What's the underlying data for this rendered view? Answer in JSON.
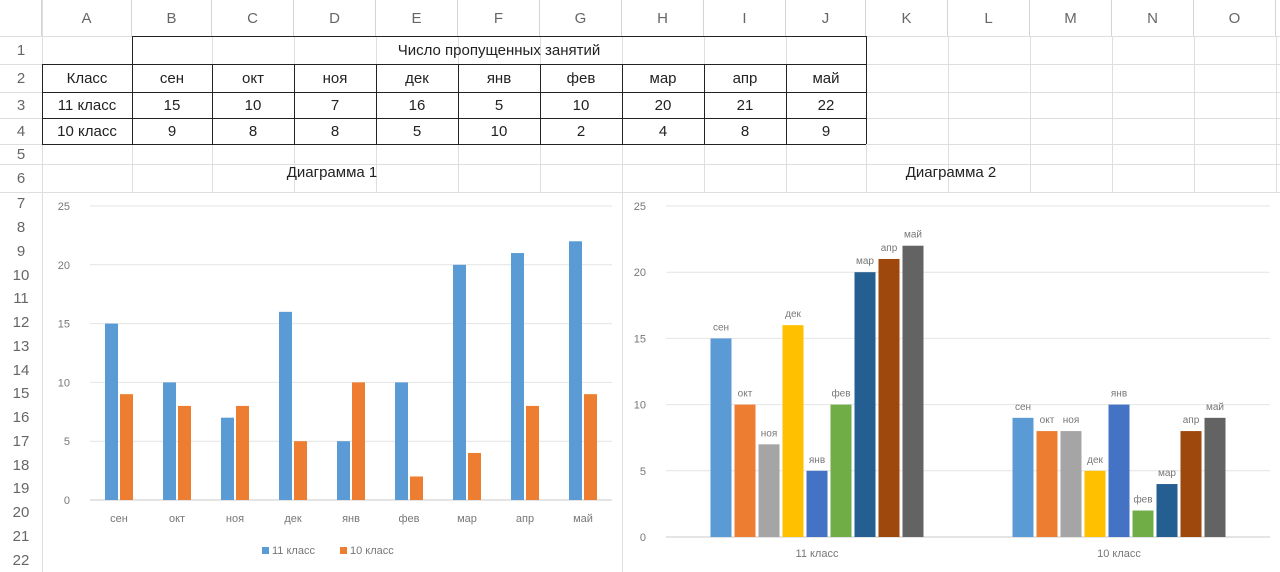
{
  "columns": [
    "A",
    "B",
    "C",
    "D",
    "E",
    "F",
    "G",
    "H",
    "I",
    "J",
    "K",
    "L",
    "M",
    "N",
    "O"
  ],
  "rows": [
    "1",
    "2",
    "3",
    "4",
    "5",
    "6",
    "7",
    "8",
    "9",
    "10",
    "11",
    "12",
    "13",
    "14",
    "15",
    "16",
    "17",
    "18",
    "19",
    "20",
    "21",
    "22"
  ],
  "table": {
    "header_merged": "Число пропущенных занятий",
    "class_header": "Класс",
    "months": [
      "сен",
      "окт",
      "ноя",
      "дек",
      "янв",
      "фев",
      "мар",
      "апр",
      "май"
    ],
    "rows": [
      {
        "label": "11 класс",
        "values": [
          "15",
          "10",
          "7",
          "16",
          "5",
          "10",
          "20",
          "21",
          "22"
        ]
      },
      {
        "label": "10 класс",
        "values": [
          "9",
          "8",
          "8",
          "5",
          "10",
          "2",
          "4",
          "8",
          "9"
        ]
      }
    ]
  },
  "chart1_title": "Диаграмма 1",
  "chart2_title": "Диаграмма 2",
  "colors": {
    "series_11": "#5b9bd5",
    "series_10": "#ed7d31",
    "months": [
      "#5b9bd5",
      "#ed7d31",
      "#a5a5a5",
      "#ffc000",
      "#4472c4",
      "#70ad47",
      "#255e91",
      "#9e480e",
      "#636363"
    ]
  },
  "chart_data": [
    {
      "type": "bar",
      "title": "Диаграмма 1",
      "categories": [
        "сен",
        "окт",
        "ноя",
        "дек",
        "янв",
        "фев",
        "мар",
        "апр",
        "май"
      ],
      "series": [
        {
          "name": "11 класс",
          "values": [
            15,
            10,
            7,
            16,
            5,
            10,
            20,
            21,
            22
          ]
        },
        {
          "name": "10 класс",
          "values": [
            9,
            8,
            8,
            5,
            10,
            2,
            4,
            8,
            9
          ]
        }
      ],
      "ylim": [
        0,
        25
      ],
      "yticks": [
        "0",
        "5",
        "10",
        "15",
        "20",
        "25"
      ],
      "legend": "bottom",
      "grid": true
    },
    {
      "type": "bar",
      "title": "Диаграмма 2",
      "categories": [
        "11 класс",
        "10 класс"
      ],
      "series": [
        {
          "name": "сен",
          "values": [
            15,
            9
          ]
        },
        {
          "name": "окт",
          "values": [
            10,
            8
          ]
        },
        {
          "name": "ноя",
          "values": [
            7,
            8
          ]
        },
        {
          "name": "дек",
          "values": [
            16,
            5
          ]
        },
        {
          "name": "янв",
          "values": [
            5,
            10
          ]
        },
        {
          "name": "фев",
          "values": [
            10,
            2
          ]
        },
        {
          "name": "мар",
          "values": [
            20,
            4
          ]
        },
        {
          "name": "апр",
          "values": [
            21,
            8
          ]
        },
        {
          "name": "май",
          "values": [
            22,
            9
          ]
        }
      ],
      "ylim": [
        0,
        25
      ],
      "yticks": [
        "0",
        "5",
        "10",
        "15",
        "20",
        "25"
      ],
      "data_labels": "series name",
      "grid": true
    }
  ]
}
